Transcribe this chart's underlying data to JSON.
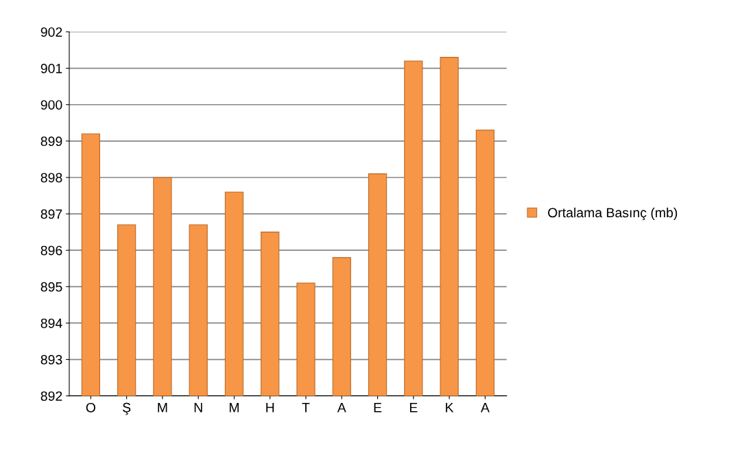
{
  "chart_data": {
    "type": "bar",
    "categories": [
      "O",
      "Ş",
      "M",
      "N",
      "M",
      "H",
      "T",
      "A",
      "E",
      "E",
      "K",
      "A"
    ],
    "series": [
      {
        "name": "Ortalama Basınç (mb)",
        "color": "#f79646",
        "values": [
          899.2,
          896.7,
          898.0,
          896.7,
          897.6,
          896.5,
          895.1,
          895.8,
          898.1,
          901.2,
          901.3,
          899.3
        ]
      }
    ],
    "ylim": [
      892,
      902
    ],
    "yticks": [
      892,
      893,
      894,
      895,
      896,
      897,
      898,
      899,
      900,
      901,
      902
    ],
    "grid": "y",
    "legend": "right"
  }
}
